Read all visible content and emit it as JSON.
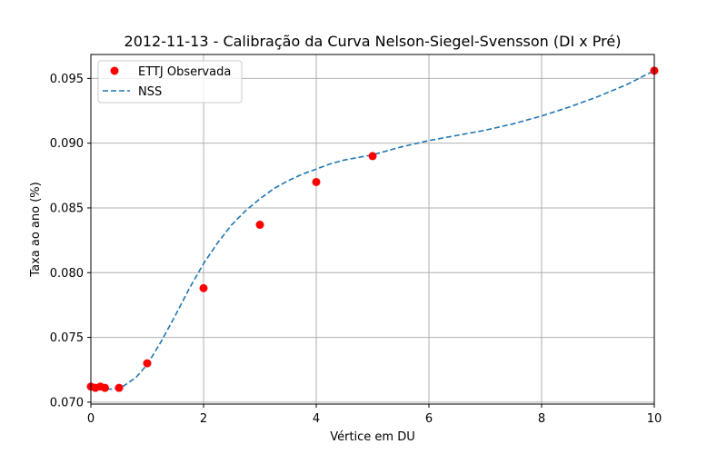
{
  "chart_data": {
    "type": "scatter",
    "title": "2012-11-13 - Calibração da Curva Nelson-Siegel-Svensson (DI x Pré)",
    "xlabel": "Vértice em DU",
    "ylabel": "Taxa ao ano (%)",
    "xlim": [
      0,
      10
    ],
    "ylim": [
      0.06985,
      0.09685
    ],
    "x_ticks": [
      0,
      2,
      4,
      6,
      8,
      10
    ],
    "x_tick_labels": [
      "0",
      "2",
      "4",
      "6",
      "8",
      "10"
    ],
    "y_ticks": [
      0.07,
      0.075,
      0.08,
      0.085,
      0.09,
      0.095
    ],
    "y_tick_labels": [
      "0.070",
      "0.075",
      "0.080",
      "0.085",
      "0.090",
      "0.095"
    ],
    "grid": true,
    "legend_position": "top-left",
    "series": [
      {
        "name": "ETTJ Observada",
        "kind": "scatter",
        "color": "#ff0000",
        "x": [
          0.0,
          0.08,
          0.17,
          0.25,
          0.5,
          1.0,
          2.0,
          3.0,
          4.0,
          5.0,
          10.0
        ],
        "y": [
          0.0712,
          0.0711,
          0.0712,
          0.0711,
          0.0711,
          0.073,
          0.0788,
          0.0837,
          0.087,
          0.089,
          0.0956
        ]
      },
      {
        "name": "NSS",
        "kind": "line",
        "style": "dashed",
        "color": "#1f77b4",
        "x": [
          0.0,
          0.1,
          0.2,
          0.3,
          0.4,
          0.5,
          0.6,
          0.8,
          1.0,
          1.25,
          1.5,
          1.75,
          2.0,
          2.25,
          2.5,
          2.75,
          3.0,
          3.25,
          3.5,
          3.75,
          4.0,
          4.25,
          4.5,
          4.75,
          5.0,
          5.5,
          6.0,
          6.5,
          7.0,
          7.5,
          8.0,
          8.5,
          9.0,
          9.5,
          10.0
        ],
        "y": [
          0.0713,
          0.0711,
          0.071,
          0.071,
          0.071,
          0.0711,
          0.0713,
          0.0719,
          0.0729,
          0.0747,
          0.0767,
          0.0788,
          0.0807,
          0.0823,
          0.0837,
          0.0848,
          0.0857,
          0.0865,
          0.0871,
          0.0876,
          0.088,
          0.0884,
          0.0887,
          0.0889,
          0.0891,
          0.0897,
          0.0902,
          0.0906,
          0.091,
          0.0915,
          0.0921,
          0.0928,
          0.0936,
          0.0945,
          0.0956
        ]
      }
    ]
  }
}
